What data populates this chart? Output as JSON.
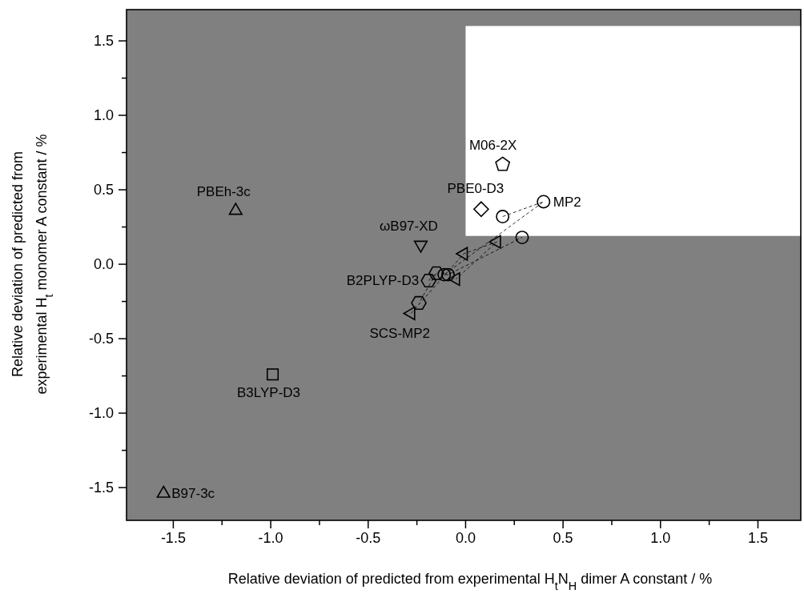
{
  "chart_data": {
    "type": "scatter",
    "xlabel": "Relative deviation of predicted from experimental H$_{t}$N$_{H}$ dimer A constant / %",
    "ylabel": "Relative deviation of predicted from experimental H$_{t}$ monomer A constant / %",
    "xlim": [
      -1.74,
      1.72
    ],
    "ylim": [
      -1.72,
      1.71
    ],
    "xticks": [
      {
        "value": -1.5,
        "label": "-1.5"
      },
      {
        "value": -1.25,
        "label": null
      },
      {
        "value": -1,
        "label": "-1.0"
      },
      {
        "value": -0.75,
        "label": null
      },
      {
        "value": -0.5,
        "label": "-0.5"
      },
      {
        "value": -0.25,
        "label": null
      },
      {
        "value": 0,
        "label": "0.0"
      },
      {
        "value": 0.25,
        "label": null
      },
      {
        "value": 0.5,
        "label": "0.5"
      },
      {
        "value": 0.75,
        "label": null
      },
      {
        "value": 1,
        "label": "1.0"
      },
      {
        "value": 1.25,
        "label": null
      },
      {
        "value": 1.5,
        "label": "1.5"
      }
    ],
    "yticks": [
      {
        "value": -1.5,
        "label": "-1.5"
      },
      {
        "value": -1.25,
        "label": null
      },
      {
        "value": -1,
        "label": "-1.0"
      },
      {
        "value": -0.75,
        "label": null
      },
      {
        "value": -0.5,
        "label": "-0.5"
      },
      {
        "value": -0.25,
        "label": null
      },
      {
        "value": 0,
        "label": "0.0"
      },
      {
        "value": 0.25,
        "label": null
      },
      {
        "value": 0.5,
        "label": "0.5"
      },
      {
        "value": 0.75,
        "label": null
      },
      {
        "value": 1,
        "label": "1.0"
      },
      {
        "value": 1.25,
        "label": null
      },
      {
        "value": 1.5,
        "label": "1.5"
      }
    ],
    "grid": false,
    "series": [
      {
        "name": "B97-3c",
        "color": "#000000",
        "marker": "triangle",
        "x": [
          -1.55
        ],
        "values": [
          -1.54
        ]
      },
      {
        "name": "PBEh-3c",
        "color": "#000000",
        "marker": "triangle",
        "x": [
          -1.18
        ],
        "values": [
          0.36
        ]
      },
      {
        "name": "B3LYP-D3",
        "color": "#000000",
        "marker": "square",
        "x": [
          -0.99
        ],
        "values": [
          -0.74
        ]
      },
      {
        "name": "ωB97-XD",
        "color": "#000000",
        "x": [
          -0.23
        ],
        "values": [
          0.13
        ]
      },
      {
        "name": "M06-2X",
        "color": "#000000",
        "x": [
          0.19
        ],
        "values": [
          0.67
        ]
      },
      {
        "name": "PBE0-D3",
        "color": "#000000",
        "marker": "diamond",
        "x": [
          0.08
        ],
        "values": [
          0.37
        ]
      },
      {
        "name": "MP2",
        "type": "line",
        "color": "#000000",
        "marker": "circle",
        "line_style": "dashed",
        "x": [
          0.19,
          0.4,
          -0.11,
          -0.09,
          0.29
        ],
        "values": [
          0.32,
          0.42,
          -0.07,
          -0.07,
          0.18
        ]
      },
      {
        "name": "SCS-MP2",
        "type": "line",
        "color": "#000000",
        "marker": "triangle",
        "line_style": "dashed",
        "x": [
          -0.28,
          -0.01,
          0.16,
          -0.05
        ],
        "values": [
          -0.33,
          0.07,
          0.15,
          -0.1
        ]
      },
      {
        "name": "B2PLYP-D3",
        "type": "line",
        "color": "#000000",
        "marker": "circle",
        "line_style": "dashed",
        "x": [
          -0.19,
          -0.15,
          -0.24
        ],
        "values": [
          -0.11,
          -0.06,
          -0.26
        ]
      }
    ]
  }
}
